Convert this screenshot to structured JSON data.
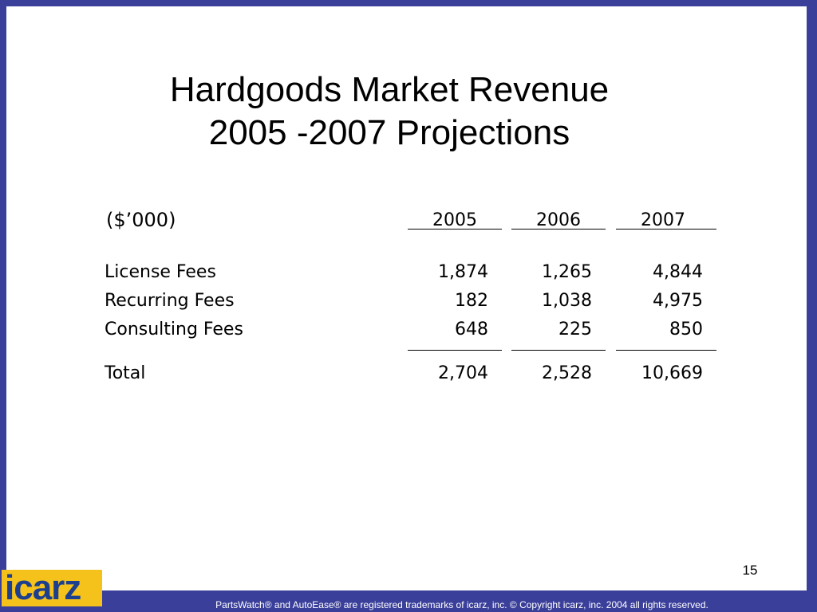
{
  "slide": {
    "title_line1": "Hardgoods Market Revenue",
    "title_line2": "2005 -2007 Projections",
    "page_number": "15"
  },
  "table": {
    "units_label": "($’000)",
    "years": [
      "2005",
      "2006",
      "2007"
    ],
    "rows": [
      {
        "label": "License Fees",
        "values": [
          "1,874",
          "1,265",
          "4,844"
        ]
      },
      {
        "label": "Recurring Fees",
        "values": [
          "182",
          "1,038",
          "4,975"
        ]
      },
      {
        "label": "Consulting Fees",
        "values": [
          "648",
          "225",
          "850"
        ]
      }
    ],
    "total": {
      "label": "Total",
      "values": [
        "2,704",
        "2,528",
        "10,669"
      ]
    }
  },
  "logo": {
    "text": "icarz"
  },
  "footer": {
    "text": "PartsWatch® and AutoEase® are registered trademarks of icarz, inc. © Copyright icarz, inc. 2004 all rights reserved."
  },
  "colors": {
    "frame": "#3a3f9a",
    "logo_bg": "#f4c21b",
    "logo_text": "#1d3f8e"
  }
}
